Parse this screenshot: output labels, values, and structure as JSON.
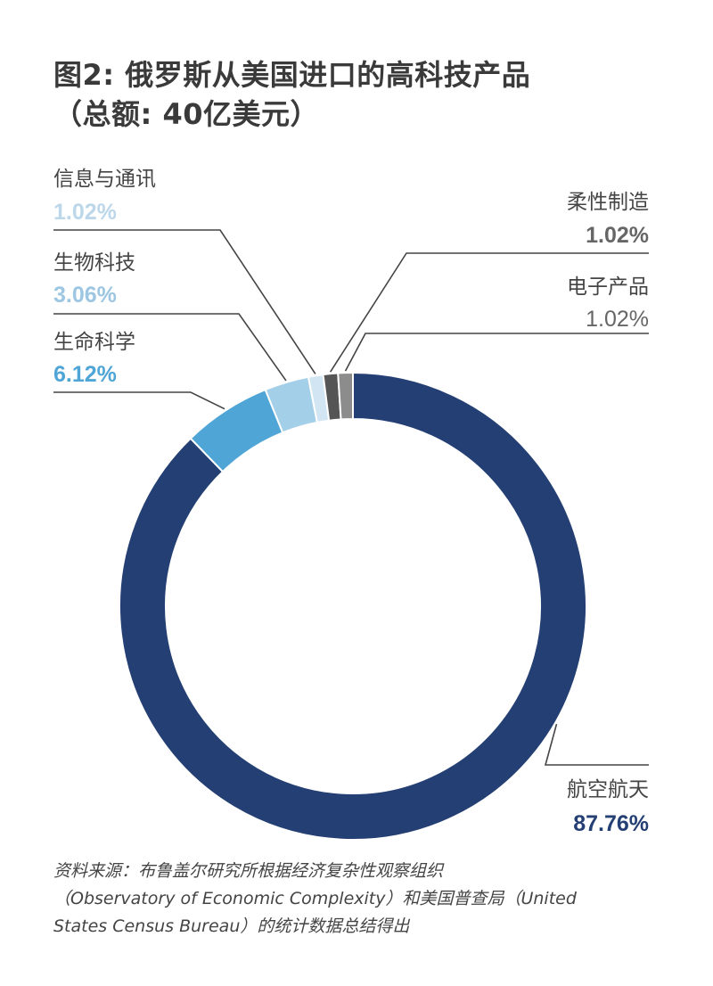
{
  "chart_data": {
    "type": "donut",
    "title": "图2: 俄罗斯从美国进口的高科技产品",
    "subtitle": "（总额: 40亿美元）",
    "slices": [
      {
        "name": "航空航天",
        "value": 87.76,
        "label": "87.76%",
        "color": "#243f73"
      },
      {
        "name": "生命科学",
        "value": 6.12,
        "label": "6.12%",
        "color": "#4fa6d6"
      },
      {
        "name": "生物科技",
        "value": 3.06,
        "label": "3.06%",
        "color": "#a3cfe8"
      },
      {
        "name": "信息与通讯",
        "value": 1.02,
        "label": "1.02%",
        "color": "#d2e5f2"
      },
      {
        "name": "柔性制造",
        "value": 1.02,
        "label": "1.02%",
        "color": "#555555"
      },
      {
        "name": "电子产品",
        "value": 1.02,
        "label": "1.02%",
        "color": "#8c8c8c"
      }
    ],
    "source_lines": [
      "资料来源：布鲁盖尔研究所根据经济复杂性观察组织",
      "（Observatory of Economic Complexity）和美国普查局（United",
      "States Census Bureau）的统计数据总结得出"
    ]
  },
  "colors": {
    "title": "#3a3a3a",
    "label_text": "#444444",
    "leader_line": "#444444",
    "percent_dark": "#243f73",
    "percent_grey": "#666666",
    "percent_light": "#bcd6ea",
    "percent_mid": "#9cc6e2",
    "percent_blue": "#4fa6d6"
  }
}
